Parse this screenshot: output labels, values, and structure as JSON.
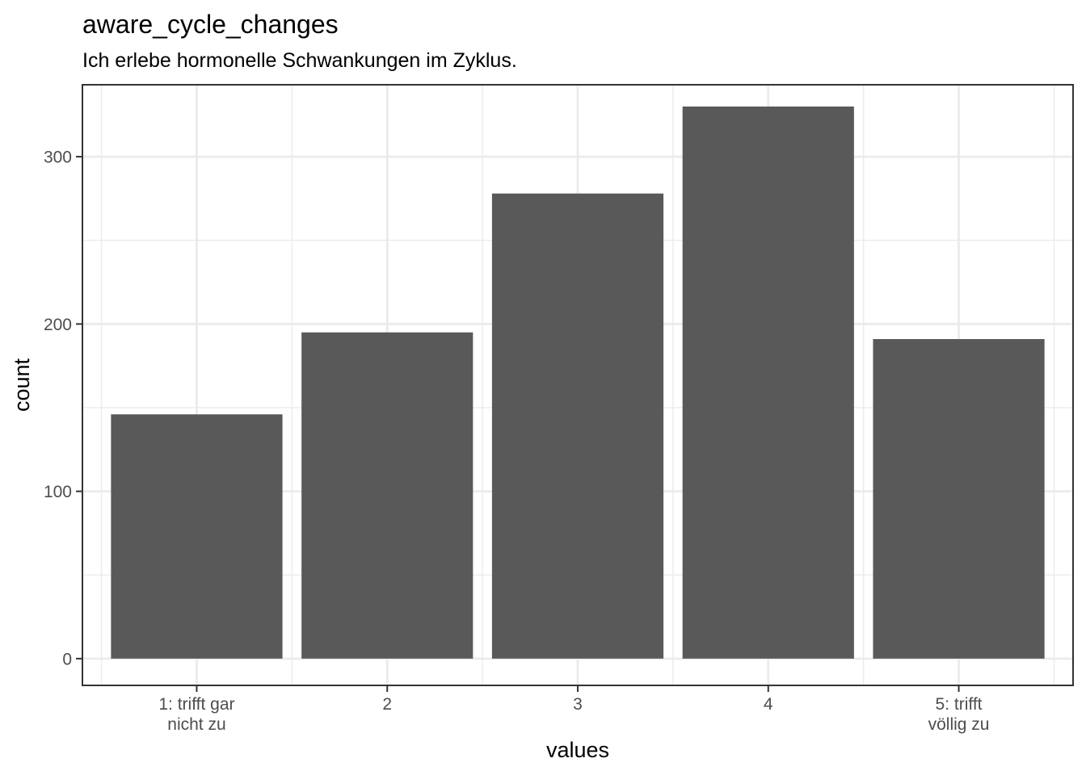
{
  "chart_data": {
    "type": "bar",
    "title": "aware_cycle_changes",
    "subtitle": "Ich erlebe hormonelle Schwankungen im Zyklus.",
    "xlabel": "values",
    "ylabel": "count",
    "categories": [
      [
        "1: trifft gar",
        "nicht zu"
      ],
      [
        "2"
      ],
      [
        "3"
      ],
      [
        "4"
      ],
      [
        "5: trifft",
        "völlig zu"
      ]
    ],
    "values": [
      146,
      195,
      278,
      330,
      191
    ],
    "ylim": [
      -16,
      343
    ],
    "yticks": [
      0,
      100,
      200,
      300
    ],
    "ytick_labels": [
      "0",
      "100",
      "200",
      "300"
    ],
    "grid": true,
    "colors": {
      "bar": "#595959",
      "panel_border": "#333333",
      "grid": "#ebebeb",
      "background": "#ffffff"
    }
  }
}
